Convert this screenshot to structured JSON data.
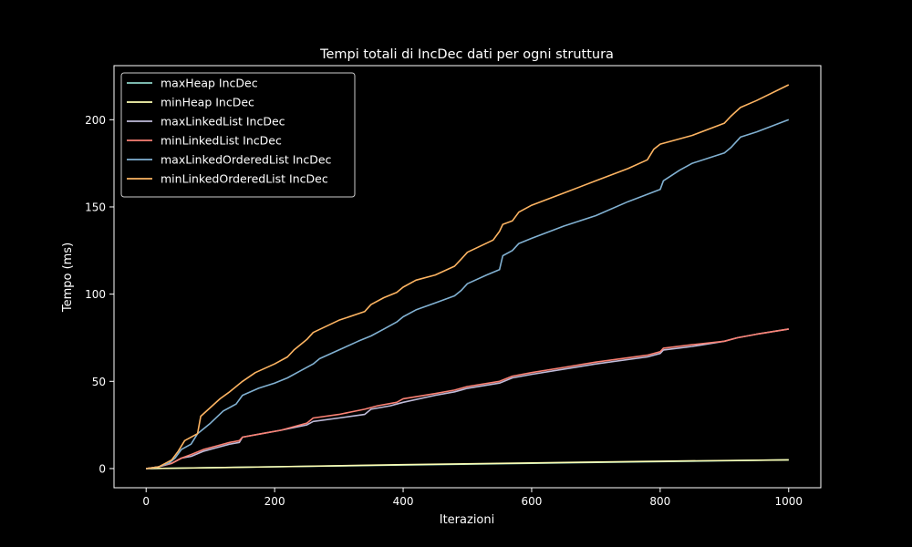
{
  "chart_data": {
    "type": "line",
    "title": "Tempi totali di IncDec dati per ogni struttura",
    "xlabel": "Iterazioni",
    "ylabel": "Tempo (ms)",
    "xlim": [
      -50,
      1050
    ],
    "ylim": [
      -11,
      231
    ],
    "xticks": [
      0,
      200,
      400,
      600,
      800,
      1000
    ],
    "yticks": [
      0,
      50,
      100,
      150,
      200
    ],
    "legend_position": "top-left",
    "grid": false,
    "series": [
      {
        "name": "maxHeap IncDec",
        "color": "#8dd3c7",
        "points": [
          [
            0,
            0
          ],
          [
            200,
            1
          ],
          [
            400,
            2
          ],
          [
            600,
            3
          ],
          [
            800,
            4
          ],
          [
            1000,
            5
          ]
        ]
      },
      {
        "name": "minHeap IncDec",
        "color": "#feffb3",
        "points": [
          [
            0,
            0
          ],
          [
            200,
            1
          ],
          [
            400,
            2.2
          ],
          [
            600,
            3.2
          ],
          [
            800,
            4.2
          ],
          [
            1000,
            5
          ]
        ]
      },
      {
        "name": "maxLinkedList IncDec",
        "color": "#bfbbd9",
        "points": [
          [
            0,
            0
          ],
          [
            20,
            1
          ],
          [
            40,
            3
          ],
          [
            55,
            6
          ],
          [
            70,
            7
          ],
          [
            90,
            10
          ],
          [
            110,
            12
          ],
          [
            130,
            14
          ],
          [
            145,
            15
          ],
          [
            150,
            18
          ],
          [
            180,
            20
          ],
          [
            210,
            22
          ],
          [
            250,
            25
          ],
          [
            260,
            27
          ],
          [
            300,
            29
          ],
          [
            340,
            31
          ],
          [
            350,
            34
          ],
          [
            380,
            36
          ],
          [
            390,
            37
          ],
          [
            400,
            38
          ],
          [
            450,
            42
          ],
          [
            480,
            44
          ],
          [
            500,
            46
          ],
          [
            550,
            49
          ],
          [
            570,
            52
          ],
          [
            600,
            54
          ],
          [
            650,
            57
          ],
          [
            700,
            60
          ],
          [
            780,
            64
          ],
          [
            800,
            66
          ],
          [
            805,
            68
          ],
          [
            850,
            70
          ],
          [
            900,
            73
          ],
          [
            920,
            75
          ],
          [
            950,
            77
          ],
          [
            1000,
            80
          ]
        ]
      },
      {
        "name": "minLinkedList IncDec",
        "color": "#fa8174",
        "points": [
          [
            0,
            0
          ],
          [
            20,
            1
          ],
          [
            40,
            3
          ],
          [
            55,
            6
          ],
          [
            70,
            8
          ],
          [
            90,
            11
          ],
          [
            110,
            13
          ],
          [
            130,
            15
          ],
          [
            145,
            16
          ],
          [
            150,
            18
          ],
          [
            180,
            20
          ],
          [
            210,
            22
          ],
          [
            230,
            24
          ],
          [
            250,
            26
          ],
          [
            260,
            29
          ],
          [
            300,
            31
          ],
          [
            340,
            34
          ],
          [
            360,
            36
          ],
          [
            390,
            38
          ],
          [
            400,
            40
          ],
          [
            450,
            43
          ],
          [
            480,
            45
          ],
          [
            500,
            47
          ],
          [
            550,
            50
          ],
          [
            570,
            53
          ],
          [
            600,
            55
          ],
          [
            650,
            58
          ],
          [
            700,
            61
          ],
          [
            780,
            65
          ],
          [
            800,
            67
          ],
          [
            805,
            69
          ],
          [
            850,
            71
          ],
          [
            900,
            73
          ],
          [
            920,
            75
          ],
          [
            950,
            77
          ],
          [
            1000,
            80
          ]
        ]
      },
      {
        "name": "maxLinkedOrderedList IncDec",
        "color": "#81b1d2",
        "points": [
          [
            0,
            0
          ],
          [
            20,
            1
          ],
          [
            35,
            3
          ],
          [
            45,
            6
          ],
          [
            55,
            11
          ],
          [
            70,
            14
          ],
          [
            80,
            20
          ],
          [
            100,
            26
          ],
          [
            120,
            33
          ],
          [
            140,
            37
          ],
          [
            150,
            42
          ],
          [
            175,
            46
          ],
          [
            200,
            49
          ],
          [
            220,
            52
          ],
          [
            240,
            56
          ],
          [
            260,
            60
          ],
          [
            270,
            63
          ],
          [
            300,
            68
          ],
          [
            330,
            73
          ],
          [
            350,
            76
          ],
          [
            370,
            80
          ],
          [
            390,
            84
          ],
          [
            400,
            87
          ],
          [
            420,
            91
          ],
          [
            450,
            95
          ],
          [
            480,
            99
          ],
          [
            490,
            102
          ],
          [
            500,
            106
          ],
          [
            530,
            111
          ],
          [
            550,
            114
          ],
          [
            555,
            122
          ],
          [
            570,
            125
          ],
          [
            580,
            129
          ],
          [
            600,
            132
          ],
          [
            650,
            139
          ],
          [
            700,
            145
          ],
          [
            750,
            153
          ],
          [
            800,
            160
          ],
          [
            805,
            165
          ],
          [
            830,
            171
          ],
          [
            850,
            175
          ],
          [
            900,
            181
          ],
          [
            910,
            184
          ],
          [
            925,
            190
          ],
          [
            950,
            193
          ],
          [
            1000,
            200
          ]
        ]
      },
      {
        "name": "minLinkedOrderedList IncDec",
        "color": "#fdb462",
        "points": [
          [
            0,
            0
          ],
          [
            20,
            1
          ],
          [
            30,
            3
          ],
          [
            40,
            5
          ],
          [
            50,
            10
          ],
          [
            60,
            16
          ],
          [
            80,
            20
          ],
          [
            85,
            30
          ],
          [
            100,
            35
          ],
          [
            115,
            40
          ],
          [
            130,
            44
          ],
          [
            150,
            50
          ],
          [
            170,
            55
          ],
          [
            200,
            60
          ],
          [
            220,
            64
          ],
          [
            230,
            68
          ],
          [
            250,
            74
          ],
          [
            260,
            78
          ],
          [
            300,
            85
          ],
          [
            340,
            90
          ],
          [
            350,
            94
          ],
          [
            370,
            98
          ],
          [
            390,
            101
          ],
          [
            400,
            104
          ],
          [
            420,
            108
          ],
          [
            450,
            111
          ],
          [
            480,
            116
          ],
          [
            490,
            120
          ],
          [
            500,
            124
          ],
          [
            540,
            131
          ],
          [
            550,
            136
          ],
          [
            555,
            140
          ],
          [
            570,
            142
          ],
          [
            580,
            147
          ],
          [
            600,
            151
          ],
          [
            650,
            158
          ],
          [
            700,
            165
          ],
          [
            750,
            172
          ],
          [
            780,
            177
          ],
          [
            790,
            183
          ],
          [
            800,
            186
          ],
          [
            850,
            191
          ],
          [
            900,
            198
          ],
          [
            910,
            202
          ],
          [
            925,
            207
          ],
          [
            950,
            211
          ],
          [
            1000,
            220
          ]
        ]
      }
    ]
  }
}
